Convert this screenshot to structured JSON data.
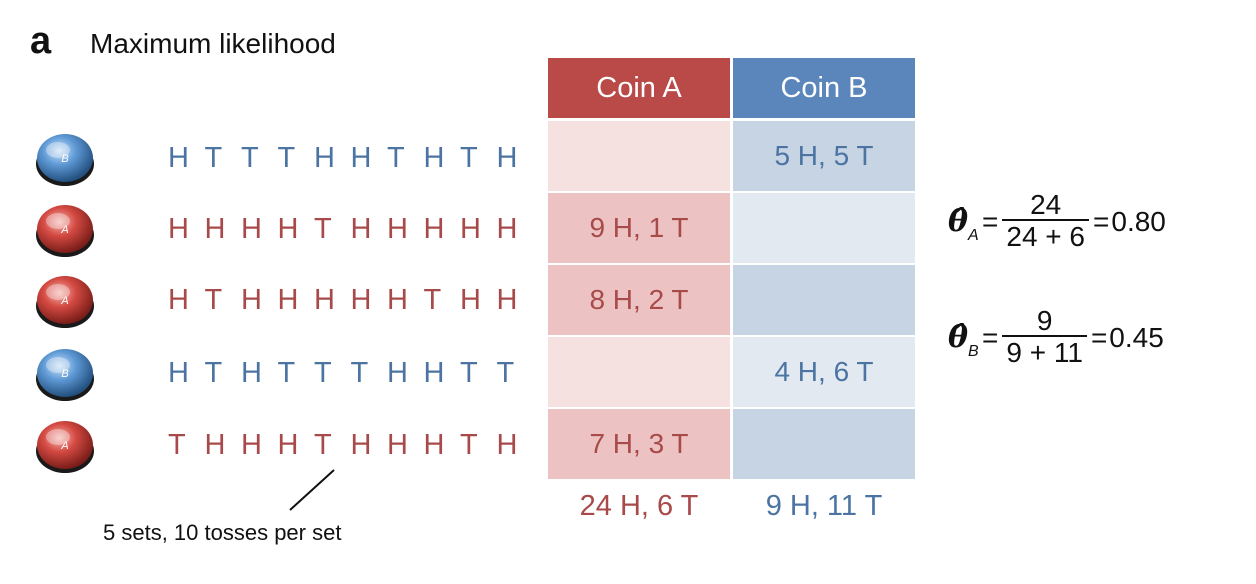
{
  "panel": {
    "letter": "a",
    "title": "Maximum likelihood"
  },
  "sets": [
    {
      "coin": "B",
      "tosses": [
        "H",
        "T",
        "T",
        "T",
        "H",
        "H",
        "T",
        "H",
        "T",
        "H"
      ]
    },
    {
      "coin": "A",
      "tosses": [
        "H",
        "H",
        "H",
        "H",
        "T",
        "H",
        "H",
        "H",
        "H",
        "H"
      ]
    },
    {
      "coin": "A",
      "tosses": [
        "H",
        "T",
        "H",
        "H",
        "H",
        "H",
        "H",
        "T",
        "H",
        "H"
      ]
    },
    {
      "coin": "B",
      "tosses": [
        "H",
        "T",
        "H",
        "T",
        "T",
        "T",
        "H",
        "H",
        "T",
        "T"
      ]
    },
    {
      "coin": "A",
      "tosses": [
        "T",
        "H",
        "H",
        "H",
        "T",
        "H",
        "H",
        "H",
        "T",
        "H"
      ]
    }
  ],
  "caption": "5 sets, 10 tosses per set",
  "table": {
    "header_a": "Coin A",
    "header_b": "Coin B",
    "rows": [
      {
        "a": "",
        "b": "5 H, 5 T"
      },
      {
        "a": "9 H, 1 T",
        "b": ""
      },
      {
        "a": "8 H, 2 T",
        "b": ""
      },
      {
        "a": "",
        "b": "4 H, 6 T"
      },
      {
        "a": "7 H, 3 T",
        "b": ""
      }
    ],
    "total_a": "24 H, 6 T",
    "total_b": "9 H, 11 T"
  },
  "formulas": {
    "a": {
      "symbol": "θ̂",
      "sub": "A",
      "num": "24",
      "den": "24 + 6",
      "result": "0.80"
    },
    "b": {
      "symbol": "θ̂",
      "sub": "B",
      "num": "9",
      "den": "9 + 11",
      "result": "0.45"
    }
  },
  "colors": {
    "coin_a": "#b94a48",
    "coin_b": "#5b86bb"
  }
}
